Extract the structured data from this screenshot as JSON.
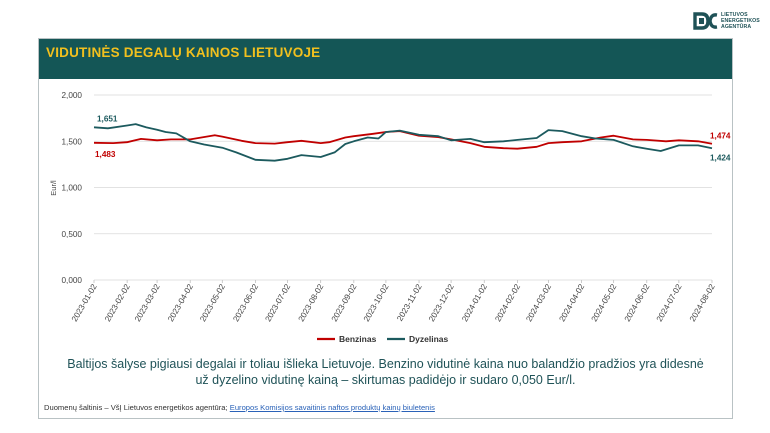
{
  "logo": {
    "lines": [
      "LIETUVOS",
      "ENERGETIKOS",
      "AGENTŪRA"
    ],
    "mark_color": "#1f5257"
  },
  "banner": {
    "title": "VIDUTINĖS DEGALŲ KAINOS LIETUVOJE"
  },
  "caption": {
    "line1": "Baltijos šalyse pigiausi degalai ir toliau išlieka Lietuvoje. Benzino vidutinė kaina nuo balandžio pradžios yra didesnė",
    "line2": "už dyzelino vidutinę kainą – skirtumas padidėjo ir sudaro 0,050 Eur/l."
  },
  "source": {
    "text": "Duomenų šaltinis – VšĮ Lietuvos energetikos agentūra;",
    "link_text": "Europos Komisijos savaitinis naftos produktų kainų biuletenis"
  },
  "chart_data": {
    "type": "line",
    "ylabel": "Eur/l",
    "ylim": [
      0,
      2.0
    ],
    "yticks": [
      0,
      0.5,
      1.0,
      1.5,
      2.0
    ],
    "ytick_labels": [
      "0,000",
      "0,500",
      "1,000",
      "1,500",
      "2,000"
    ],
    "x_tick_labels": [
      "2023-01-02",
      "2023-02-02",
      "2023-03-02",
      "2023-04-02",
      "2023-05-02",
      "2023-06-02",
      "2023-07-02",
      "2023-08-02",
      "2023-09-02",
      "2023-10-02",
      "2023-11-02",
      "2023-12-02",
      "2024-01-02",
      "2024-02-02",
      "2024-03-02",
      "2024-04-02",
      "2024-05-02",
      "2024-06-02",
      "2024-07-02",
      "2024-08-02"
    ],
    "grid": "horizontal",
    "legend_position": "bottom",
    "series": [
      {
        "name": "Benzinas",
        "color": "#c00000",
        "start_label": "1,483",
        "end_label": "1,474",
        "points": [
          [
            "2023-01-02",
            1.483
          ],
          [
            "2023-01-20",
            1.48
          ],
          [
            "2023-02-02",
            1.49
          ],
          [
            "2023-02-15",
            1.525
          ],
          [
            "2023-03-02",
            1.51
          ],
          [
            "2023-03-15",
            1.52
          ],
          [
            "2023-04-02",
            1.52
          ],
          [
            "2023-04-25",
            1.565
          ],
          [
            "2023-05-02",
            1.55
          ],
          [
            "2023-05-20",
            1.505
          ],
          [
            "2023-06-02",
            1.48
          ],
          [
            "2023-06-20",
            1.475
          ],
          [
            "2023-07-02",
            1.49
          ],
          [
            "2023-07-15",
            1.505
          ],
          [
            "2023-08-02",
            1.48
          ],
          [
            "2023-08-10",
            1.49
          ],
          [
            "2023-08-25",
            1.54
          ],
          [
            "2023-09-02",
            1.555
          ],
          [
            "2023-09-20",
            1.58
          ],
          [
            "2023-10-02",
            1.6
          ],
          [
            "2023-10-15",
            1.61
          ],
          [
            "2023-11-02",
            1.56
          ],
          [
            "2023-11-20",
            1.545
          ],
          [
            "2023-12-02",
            1.52
          ],
          [
            "2023-12-20",
            1.48
          ],
          [
            "2024-01-02",
            1.44
          ],
          [
            "2024-01-20",
            1.425
          ],
          [
            "2024-02-02",
            1.42
          ],
          [
            "2024-02-20",
            1.44
          ],
          [
            "2024-03-02",
            1.48
          ],
          [
            "2024-03-15",
            1.49
          ],
          [
            "2024-04-02",
            1.5
          ],
          [
            "2024-04-20",
            1.54
          ],
          [
            "2024-05-02",
            1.56
          ],
          [
            "2024-05-20",
            1.52
          ],
          [
            "2024-06-02",
            1.515
          ],
          [
            "2024-06-20",
            1.5
          ],
          [
            "2024-07-02",
            1.51
          ],
          [
            "2024-07-20",
            1.5
          ],
          [
            "2024-08-02",
            1.474
          ]
        ]
      },
      {
        "name": "Dyzelinas",
        "color": "#1c5a5e",
        "start_label": "1,651",
        "end_label": "1,424",
        "points": [
          [
            "2023-01-02",
            1.651
          ],
          [
            "2023-01-15",
            1.64
          ],
          [
            "2023-02-02",
            1.67
          ],
          [
            "2023-02-10",
            1.685
          ],
          [
            "2023-02-20",
            1.65
          ],
          [
            "2023-03-02",
            1.625
          ],
          [
            "2023-03-10",
            1.6
          ],
          [
            "2023-03-20",
            1.585
          ],
          [
            "2023-04-02",
            1.5
          ],
          [
            "2023-04-15",
            1.465
          ],
          [
            "2023-05-02",
            1.43
          ],
          [
            "2023-05-15",
            1.38
          ],
          [
            "2023-06-02",
            1.3
          ],
          [
            "2023-06-20",
            1.29
          ],
          [
            "2023-07-02",
            1.31
          ],
          [
            "2023-07-15",
            1.35
          ],
          [
            "2023-08-02",
            1.33
          ],
          [
            "2023-08-15",
            1.38
          ],
          [
            "2023-08-25",
            1.47
          ],
          [
            "2023-09-02",
            1.5
          ],
          [
            "2023-09-15",
            1.54
          ],
          [
            "2023-09-25",
            1.53
          ],
          [
            "2023-10-02",
            1.6
          ],
          [
            "2023-10-15",
            1.615
          ],
          [
            "2023-11-02",
            1.57
          ],
          [
            "2023-11-20",
            1.555
          ],
          [
            "2023-12-02",
            1.51
          ],
          [
            "2023-12-20",
            1.525
          ],
          [
            "2024-01-02",
            1.49
          ],
          [
            "2024-01-20",
            1.5
          ],
          [
            "2024-02-02",
            1.515
          ],
          [
            "2024-02-20",
            1.535
          ],
          [
            "2024-03-02",
            1.62
          ],
          [
            "2024-03-15",
            1.61
          ],
          [
            "2024-04-02",
            1.555
          ],
          [
            "2024-04-15",
            1.53
          ],
          [
            "2024-05-02",
            1.515
          ],
          [
            "2024-05-20",
            1.445
          ],
          [
            "2024-06-02",
            1.42
          ],
          [
            "2024-06-15",
            1.395
          ],
          [
            "2024-07-02",
            1.455
          ],
          [
            "2024-07-20",
            1.455
          ],
          [
            "2024-08-02",
            1.424
          ]
        ]
      }
    ]
  }
}
